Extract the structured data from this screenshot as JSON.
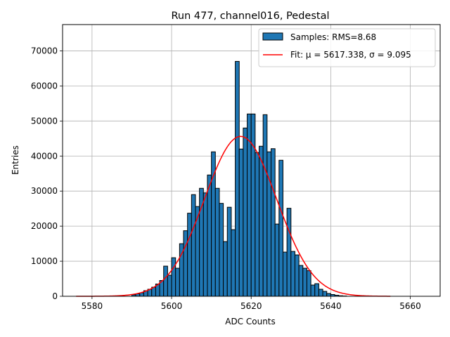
{
  "chart_data": {
    "type": "bar",
    "title": "Run 477, channel016, Pedestal",
    "xlabel": "ADC Counts",
    "ylabel": "Entries",
    "xlim": [
      5572.6,
      5667.5
    ],
    "ylim": [
      0,
      77500
    ],
    "grid": true,
    "legend_position": "top-right",
    "x_ticks": [
      5580,
      5600,
      5620,
      5640,
      5660
    ],
    "y_ticks": [
      0,
      10000,
      20000,
      30000,
      40000,
      50000,
      60000,
      70000
    ],
    "x_tick_labels": [
      "5580",
      "5600",
      "5620",
      "5640",
      "5660"
    ],
    "y_tick_labels": [
      "0",
      "10000",
      "20000",
      "30000",
      "40000",
      "50000",
      "60000",
      "70000"
    ],
    "bin_width": 1,
    "series": [
      {
        "name": "Samples: RMS=8.68",
        "type": "histogram",
        "color": "#1f77b4",
        "edge_color": "#000000",
        "bin_starts": [
          5590,
          5591,
          5592,
          5593,
          5594,
          5595,
          5596,
          5597,
          5598,
          5599,
          5600,
          5601,
          5602,
          5603,
          5604,
          5605,
          5606,
          5607,
          5608,
          5609,
          5610,
          5611,
          5612,
          5613,
          5614,
          5615,
          5616,
          5617,
          5618,
          5619,
          5620,
          5621,
          5622,
          5623,
          5624,
          5625,
          5626,
          5627,
          5628,
          5629,
          5630,
          5631,
          5632,
          5633,
          5634,
          5635,
          5636,
          5637,
          5638,
          5639,
          5640,
          5641,
          5642,
          5643
        ],
        "values": [
          400,
          700,
          1000,
          1600,
          2000,
          2600,
          3500,
          4500,
          8600,
          6000,
          11000,
          8000,
          15000,
          18700,
          23700,
          29000,
          25600,
          30800,
          29500,
          34600,
          41200,
          30800,
          26500,
          15600,
          25400,
          19000,
          67000,
          42000,
          48000,
          52000,
          52000,
          41000,
          42800,
          51800,
          41200,
          42100,
          20600,
          38800,
          12600,
          25100,
          12800,
          11800,
          8800,
          8000,
          7300,
          3200,
          3600,
          2000,
          1400,
          800,
          500,
          300,
          150,
          80
        ]
      },
      {
        "name": "Fit: μ = 5617.338, σ = 9.095",
        "type": "line",
        "color": "#ff0000",
        "mu": 5617.338,
        "sigma": 9.095,
        "amplitude": 45600,
        "x_range": [
          5576,
          5655
        ]
      }
    ]
  }
}
